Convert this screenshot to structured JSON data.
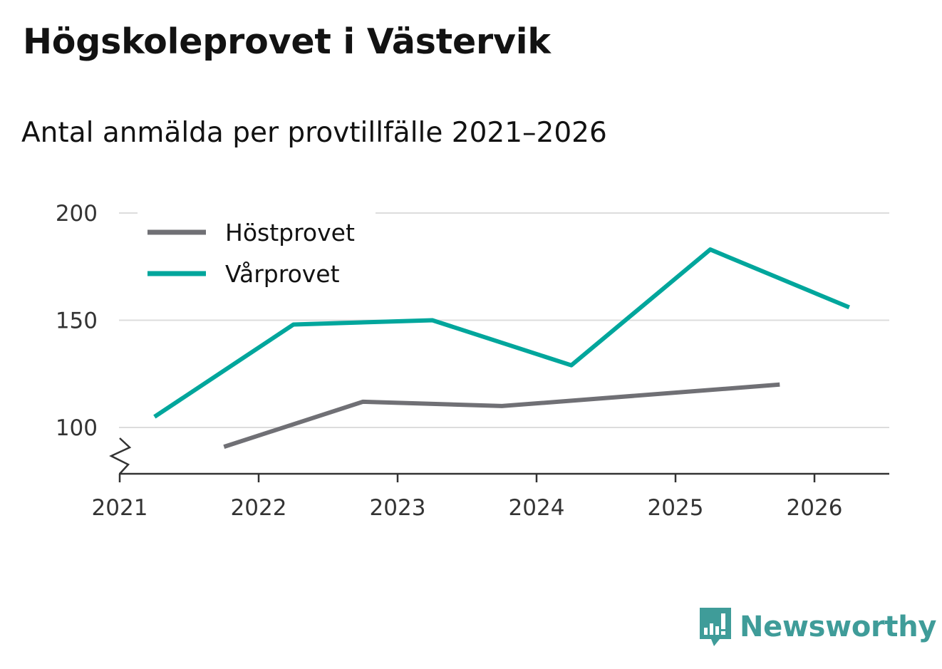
{
  "header": {
    "title": "Högskoleprovet i Västervik",
    "subtitle": "Antal anmälda per provtillfälle 2021–2026"
  },
  "brand": {
    "name": "Newsworthy",
    "logo_icon": "bar-chart-speech-bubble-icon",
    "color": "#3f9c99"
  },
  "chart_data": {
    "type": "line",
    "xlim": [
      2021,
      2026.55
    ],
    "ylim": [
      78,
      200
    ],
    "x_ticks": [
      "2021",
      "2022",
      "2023",
      "2024",
      "2025",
      "2026"
    ],
    "y_ticks": [
      "100",
      "150",
      "200"
    ],
    "y_axis_break": true,
    "grid": true,
    "legend_placement": "top-left",
    "series": [
      {
        "name": "Höstprovet",
        "color": "#707075",
        "points": [
          {
            "x": 2021.75,
            "y": 91
          },
          {
            "x": 2022.75,
            "y": 112
          },
          {
            "x": 2023.75,
            "y": 110
          },
          {
            "x": 2025.75,
            "y": 120
          }
        ]
      },
      {
        "name": "Vårprovet",
        "color": "#00a69c",
        "points": [
          {
            "x": 2021.25,
            "y": 105
          },
          {
            "x": 2022.25,
            "y": 148
          },
          {
            "x": 2023.25,
            "y": 150
          },
          {
            "x": 2024.25,
            "y": 129
          },
          {
            "x": 2025.25,
            "y": 183
          },
          {
            "x": 2026.25,
            "y": 156
          }
        ]
      }
    ]
  }
}
